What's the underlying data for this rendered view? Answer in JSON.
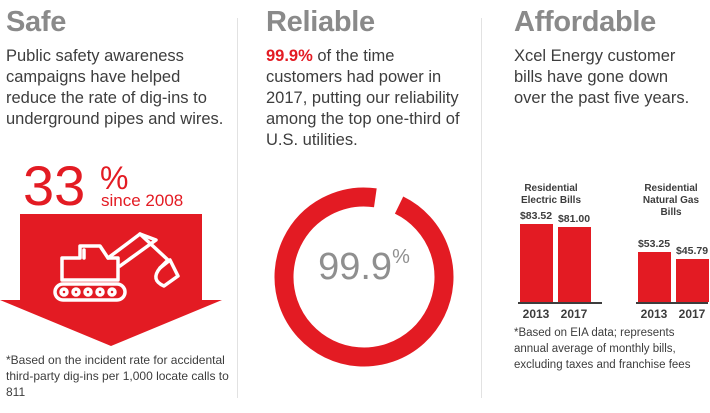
{
  "safe": {
    "heading": "Safe",
    "body": "Public safety awareness campaigns have helped reduce the rate of dig-ins to underground pipes and wires.",
    "stat_value": "33",
    "stat_unit": "%",
    "stat_since": "since 2008",
    "footnote": "*Based on the incident rate for accidental third-party dig-ins per 1,000 locate calls to 811",
    "icon": "excavator-icon",
    "colors": {
      "accent": "#e31b23"
    }
  },
  "reliable": {
    "heading": "Reliable",
    "body_highlight": "99.9%",
    "body_rest": " of the time customers had power in 2017, putting our reliability among the top one-third of U.S. utilities.",
    "donut_value": "99.9",
    "donut_unit": "%",
    "donut_fraction": 0.95
  },
  "affordable": {
    "heading": "Affordable",
    "body": "Xcel Energy customer bills have gone down over the past five years.",
    "footnote": "*Based on EIA data; represents annual average of monthly bills, excluding taxes and franchise fees"
  },
  "chart_data": {
    "type": "bar",
    "groups": [
      {
        "name": "Residential Electric Bills",
        "categories": [
          "2013",
          "2017"
        ],
        "values": [
          83.52,
          81.0
        ],
        "labels": [
          "$83.52",
          "$81.00"
        ]
      },
      {
        "name": "Residential Natural Gas Bills",
        "categories": [
          "2013",
          "2017"
        ],
        "values": [
          53.25,
          45.79
        ],
        "labels": [
          "$53.25",
          "$45.79"
        ]
      }
    ]
  }
}
